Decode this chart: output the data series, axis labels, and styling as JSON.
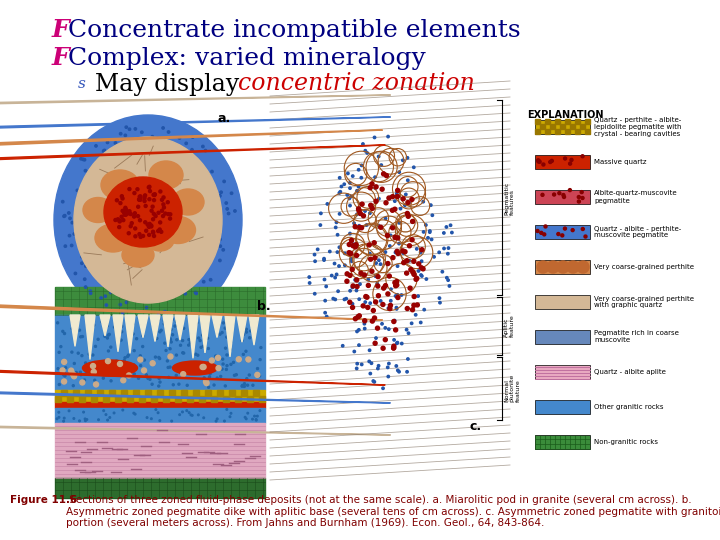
{
  "background_color": "#ffffff",
  "F_color": "#cc0077",
  "navy": "#000080",
  "black": "#000000",
  "red_text": "#cc0000",
  "blue_bullet": "#3355bb",
  "line1_text": "Concentrate incompatible elements",
  "line2_text": "Complex: varied mineralogy",
  "line3a_text": "May display ",
  "line3b_text": "concentric zonation",
  "caption_text": "Figure 11.6 Sections of three zoned fluid-phase deposits (not at the same scale). a. Miarolitic pod in granite (several cm across). b.\nAsymmetric zoned pegmatite dike with aplitic base (several tens of cm across). c. Asymmetric zoned pegmatite with granitoid outer\nportion (several meters across). From Jahns and Burnham (1969). Econ. Geol., 64, 843-864.",
  "caption_color": "#800000",
  "caption_fontsize": 7.5
}
